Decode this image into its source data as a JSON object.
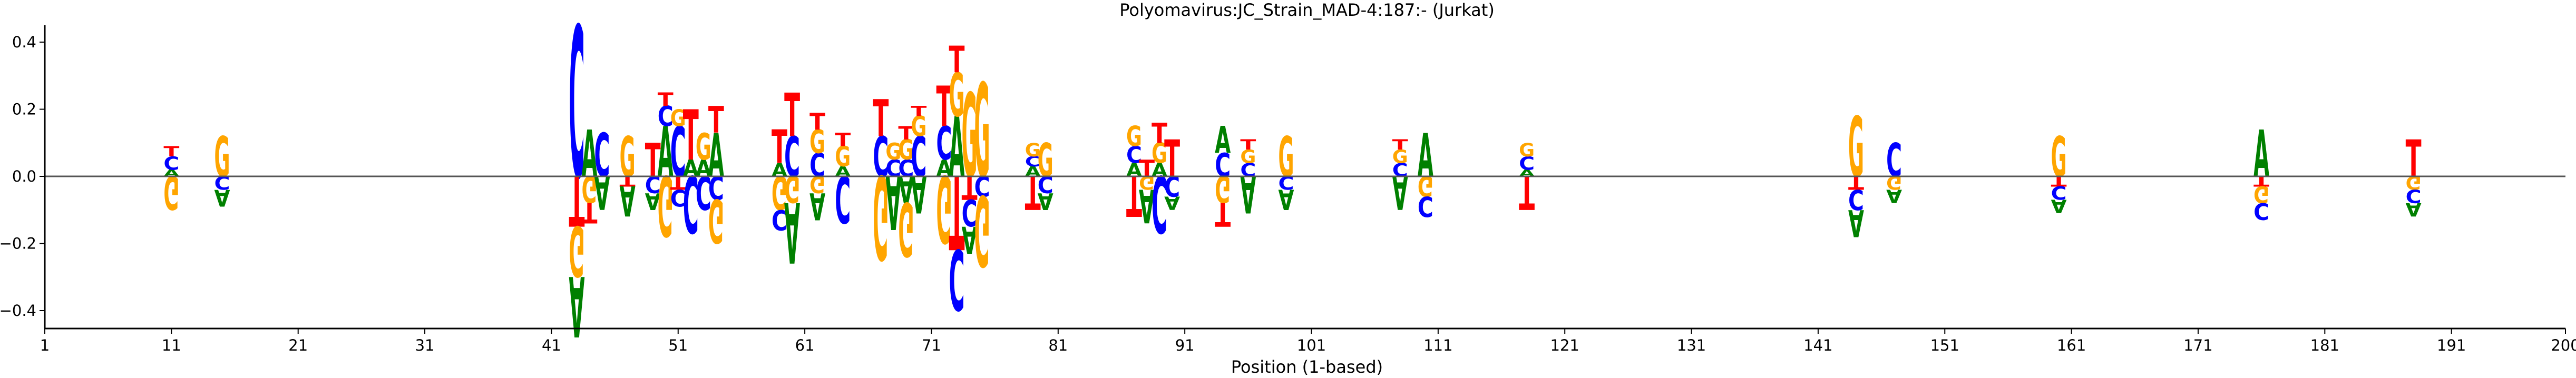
{
  "chart_data": {
    "type": "sequence-logo",
    "title": "Polyomavirus:JC_Strain_MAD-4:187:-  (Jurkat)",
    "xlabel": "Position (1-based)",
    "ylabel": "",
    "xlim": [
      1,
      200
    ],
    "ylim": [
      -0.45,
      0.45
    ],
    "x_ticks": [
      1,
      11,
      21,
      31,
      41,
      51,
      61,
      71,
      81,
      91,
      101,
      111,
      121,
      131,
      141,
      151,
      161,
      171,
      181,
      191,
      200
    ],
    "y_ticks": [
      -0.4,
      -0.2,
      0.0,
      0.2,
      0.4
    ],
    "y_tick_labels": [
      "−0.4",
      "−0.2",
      "0.0",
      "0.2",
      "0.4"
    ],
    "grid": false,
    "baseline": 0.0,
    "colors": {
      "A": "#008000",
      "C": "#0000ff",
      "G": "#ffa500",
      "T": "#ff0000"
    },
    "positions": [
      {
        "pos": 11,
        "up": [
          [
            "A",
            0.02
          ],
          [
            "C",
            0.04
          ],
          [
            "T",
            0.03
          ]
        ],
        "down": [
          [
            "G",
            0.1
          ]
        ]
      },
      {
        "pos": 15,
        "up": [
          [
            "G",
            0.12
          ]
        ],
        "down": [
          [
            "C",
            0.04
          ],
          [
            "A",
            0.05
          ]
        ]
      },
      {
        "pos": 43,
        "up": [
          [
            "C",
            0.45
          ]
        ],
        "down": [
          [
            "T",
            0.15
          ],
          [
            "G",
            0.15
          ],
          [
            "A",
            0.18
          ]
        ]
      },
      {
        "pos": 44,
        "up": [
          [
            "A",
            0.14
          ]
        ],
        "down": [
          [
            "G",
            0.08
          ],
          [
            "T",
            0.06
          ]
        ]
      },
      {
        "pos": 45,
        "up": [
          [
            "C",
            0.13
          ]
        ],
        "down": [
          [
            "A",
            0.1
          ]
        ]
      },
      {
        "pos": 47,
        "up": [
          [
            "G",
            0.12
          ]
        ],
        "down": [
          [
            "T",
            0.03
          ],
          [
            "A",
            0.09
          ]
        ]
      },
      {
        "pos": 49,
        "up": [
          [
            "T",
            0.1
          ]
        ],
        "down": [
          [
            "C",
            0.05
          ],
          [
            "A",
            0.05
          ]
        ]
      },
      {
        "pos": 50,
        "up": [
          [
            "A",
            0.15
          ],
          [
            "C",
            0.06
          ],
          [
            "T",
            0.04
          ]
        ],
        "down": [
          [
            "G",
            0.18
          ]
        ]
      },
      {
        "pos": 51,
        "up": [
          [
            "C",
            0.15
          ],
          [
            "G",
            0.05
          ]
        ],
        "down": [
          [
            "T",
            0.04
          ],
          [
            "C",
            0.05
          ]
        ]
      },
      {
        "pos": 52,
        "up": [
          [
            "A",
            0.05
          ],
          [
            "T",
            0.15
          ]
        ],
        "down": [
          [
            "C",
            0.17
          ]
        ]
      },
      {
        "pos": 53,
        "up": [
          [
            "A",
            0.05
          ],
          [
            "G",
            0.08
          ]
        ],
        "down": [
          [
            "C",
            0.1
          ]
        ]
      },
      {
        "pos": 54,
        "up": [
          [
            "A",
            0.13
          ],
          [
            "T",
            0.08
          ]
        ],
        "down": [
          [
            "C",
            0.07
          ],
          [
            "G",
            0.13
          ]
        ]
      },
      {
        "pos": 59,
        "up": [
          [
            "A",
            0.04
          ],
          [
            "T",
            0.1
          ]
        ],
        "down": [
          [
            "G",
            0.1
          ],
          [
            "C",
            0.06
          ]
        ]
      },
      {
        "pos": 60,
        "up": [
          [
            "C",
            0.12
          ],
          [
            "T",
            0.13
          ]
        ],
        "down": [
          [
            "G",
            0.08
          ],
          [
            "A",
            0.18
          ]
        ]
      },
      {
        "pos": 62,
        "up": [
          [
            "C",
            0.07
          ],
          [
            "G",
            0.07
          ],
          [
            "T",
            0.05
          ]
        ],
        "down": [
          [
            "G",
            0.05
          ],
          [
            "A",
            0.08
          ]
        ]
      },
      {
        "pos": 64,
        "up": [
          [
            "A",
            0.03
          ],
          [
            "G",
            0.06
          ],
          [
            "T",
            0.04
          ]
        ],
        "down": [
          [
            "C",
            0.14
          ]
        ]
      },
      {
        "pos": 67,
        "up": [
          [
            "C",
            0.12
          ],
          [
            "T",
            0.11
          ]
        ],
        "down": [
          [
            "G",
            0.25
          ]
        ]
      },
      {
        "pos": 68,
        "up": [
          [
            "C",
            0.05
          ],
          [
            "G",
            0.05
          ]
        ],
        "down": [
          [
            "A",
            0.16
          ]
        ]
      },
      {
        "pos": 69,
        "up": [
          [
            "C",
            0.05
          ],
          [
            "G",
            0.06
          ],
          [
            "T",
            0.04
          ]
        ],
        "down": [
          [
            "A",
            0.08
          ],
          [
            "G",
            0.16
          ]
        ]
      },
      {
        "pos": 70,
        "up": [
          [
            "C",
            0.12
          ],
          [
            "G",
            0.06
          ],
          [
            "T",
            0.03
          ]
        ],
        "down": [
          [
            "A",
            0.11
          ]
        ]
      },
      {
        "pos": 72,
        "up": [
          [
            "A",
            0.05
          ],
          [
            "C",
            0.1
          ],
          [
            "T",
            0.12
          ]
        ],
        "down": [
          [
            "G",
            0.2
          ]
        ]
      },
      {
        "pos": 73,
        "up": [
          [
            "A",
            0.18
          ],
          [
            "G",
            0.13
          ],
          [
            "T",
            0.08
          ]
        ],
        "down": [
          [
            "T",
            0.22
          ],
          [
            "C",
            0.18
          ]
        ]
      },
      {
        "pos": 74,
        "up": [
          [
            "G",
            0.25
          ]
        ],
        "down": [
          [
            "T",
            0.07
          ],
          [
            "C",
            0.08
          ],
          [
            "A",
            0.08
          ]
        ]
      },
      {
        "pos": 75,
        "up": [
          [
            "G",
            0.28
          ]
        ],
        "down": [
          [
            "C",
            0.06
          ],
          [
            "G",
            0.21
          ]
        ]
      },
      {
        "pos": 79,
        "up": [
          [
            "A",
            0.03
          ],
          [
            "C",
            0.03
          ],
          [
            "G",
            0.04
          ]
        ],
        "down": [
          [
            "T",
            0.1
          ]
        ]
      },
      {
        "pos": 80,
        "up": [
          [
            "G",
            0.1
          ]
        ],
        "down": [
          [
            "C",
            0.05
          ],
          [
            "A",
            0.05
          ]
        ]
      },
      {
        "pos": 87,
        "up": [
          [
            "A",
            0.04
          ],
          [
            "C",
            0.05
          ],
          [
            "G",
            0.06
          ]
        ],
        "down": [
          [
            "T",
            0.12
          ]
        ]
      },
      {
        "pos": 88,
        "up": [
          [
            "T",
            0.05
          ]
        ],
        "down": [
          [
            "G",
            0.04
          ],
          [
            "A",
            0.1
          ]
        ]
      },
      {
        "pos": 89,
        "up": [
          [
            "A",
            0.04
          ],
          [
            "G",
            0.06
          ],
          [
            "T",
            0.06
          ]
        ],
        "down": [
          [
            "C",
            0.17
          ]
        ]
      },
      {
        "pos": 90,
        "up": [
          [
            "T",
            0.11
          ]
        ],
        "down": [
          [
            "C",
            0.06
          ],
          [
            "A",
            0.04
          ]
        ]
      },
      {
        "pos": 94,
        "up": [
          [
            "C",
            0.07
          ],
          [
            "A",
            0.08
          ]
        ],
        "down": [
          [
            "G",
            0.08
          ],
          [
            "T",
            0.07
          ]
        ]
      },
      {
        "pos": 96,
        "up": [
          [
            "C",
            0.04
          ],
          [
            "G",
            0.04
          ],
          [
            "T",
            0.03
          ]
        ],
        "down": [
          [
            "A",
            0.11
          ]
        ]
      },
      {
        "pos": 99,
        "up": [
          [
            "G",
            0.12
          ]
        ],
        "down": [
          [
            "C",
            0.04
          ],
          [
            "A",
            0.06
          ]
        ]
      },
      {
        "pos": 108,
        "up": [
          [
            "C",
            0.04
          ],
          [
            "G",
            0.04
          ],
          [
            "T",
            0.03
          ]
        ],
        "down": [
          [
            "A",
            0.1
          ]
        ]
      },
      {
        "pos": 110,
        "up": [
          [
            "A",
            0.13
          ]
        ],
        "down": [
          [
            "G",
            0.06
          ],
          [
            "C",
            0.06
          ]
        ]
      },
      {
        "pos": 118,
        "up": [
          [
            "A",
            0.02
          ],
          [
            "C",
            0.04
          ],
          [
            "G",
            0.04
          ]
        ],
        "down": [
          [
            "T",
            0.1
          ]
        ]
      },
      {
        "pos": 144,
        "up": [
          [
            "G",
            0.18
          ]
        ],
        "down": [
          [
            "T",
            0.04
          ],
          [
            "C",
            0.06
          ],
          [
            "A",
            0.08
          ]
        ]
      },
      {
        "pos": 147,
        "up": [
          [
            "C",
            0.1
          ]
        ],
        "down": [
          [
            "G",
            0.04
          ],
          [
            "A",
            0.04
          ]
        ]
      },
      {
        "pos": 160,
        "up": [
          [
            "G",
            0.12
          ]
        ],
        "down": [
          [
            "T",
            0.03
          ],
          [
            "C",
            0.04
          ],
          [
            "A",
            0.04
          ]
        ]
      },
      {
        "pos": 176,
        "up": [
          [
            "A",
            0.14
          ]
        ],
        "down": [
          [
            "T",
            0.03
          ],
          [
            "G",
            0.05
          ],
          [
            "C",
            0.05
          ]
        ]
      },
      {
        "pos": 188,
        "up": [
          [
            "T",
            0.11
          ]
        ],
        "down": [
          [
            "G",
            0.04
          ],
          [
            "C",
            0.04
          ],
          [
            "A",
            0.04
          ]
        ]
      }
    ]
  }
}
